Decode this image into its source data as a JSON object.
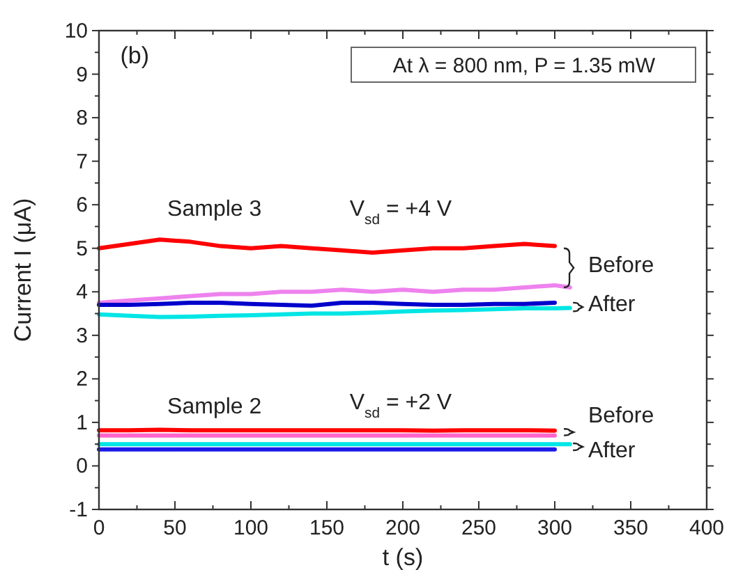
{
  "chart_data": {
    "type": "line",
    "xlabel": "t (s)",
    "ylabel": "Current I (μA)",
    "xlim": [
      0,
      400
    ],
    "ylim": [
      -1,
      10
    ],
    "xticks": [
      0,
      50,
      100,
      150,
      200,
      250,
      300,
      350,
      400
    ],
    "yticks": [
      -1,
      0,
      1,
      2,
      3,
      4,
      5,
      6,
      7,
      8,
      9,
      10
    ],
    "grid": false,
    "marker": "none",
    "line_style": "solid",
    "x": [
      0,
      20,
      40,
      60,
      80,
      100,
      120,
      140,
      160,
      180,
      200,
      220,
      240,
      260,
      280,
      300
    ],
    "series": [
      {
        "color": "#ff0000",
        "values": [
          5.0,
          5.1,
          5.2,
          5.15,
          5.05,
          5.0,
          5.05,
          5.0,
          4.95,
          4.9,
          4.95,
          5.0,
          5.0,
          5.05,
          5.1,
          5.05
        ]
      },
      {
        "color": "#ee82ee",
        "x": [
          0,
          20,
          40,
          60,
          80,
          100,
          120,
          140,
          160,
          180,
          200,
          220,
          240,
          260,
          280,
          300,
          310
        ],
        "values": [
          3.75,
          3.8,
          3.85,
          3.9,
          3.95,
          3.95,
          4.0,
          4.0,
          4.05,
          4.0,
          4.05,
          4.0,
          4.05,
          4.05,
          4.1,
          4.15,
          4.1
        ]
      },
      {
        "color": "#0000cc",
        "values": [
          3.7,
          3.7,
          3.72,
          3.75,
          3.75,
          3.72,
          3.7,
          3.68,
          3.75,
          3.75,
          3.72,
          3.7,
          3.7,
          3.72,
          3.72,
          3.75
        ]
      },
      {
        "color": "#00e5e5",
        "x": [
          0,
          20,
          40,
          60,
          80,
          100,
          120,
          140,
          160,
          180,
          200,
          220,
          240,
          260,
          280,
          300,
          310
        ],
        "values": [
          3.48,
          3.45,
          3.42,
          3.43,
          3.45,
          3.46,
          3.48,
          3.5,
          3.5,
          3.52,
          3.55,
          3.57,
          3.58,
          3.6,
          3.62,
          3.62,
          3.63
        ]
      },
      {
        "color": "#ff0000",
        "values": [
          0.82,
          0.82,
          0.83,
          0.82,
          0.82,
          0.82,
          0.82,
          0.82,
          0.82,
          0.82,
          0.82,
          0.81,
          0.82,
          0.82,
          0.82,
          0.81
        ]
      },
      {
        "color": "#ff66cc",
        "values": [
          0.7,
          0.7,
          0.7,
          0.7,
          0.7,
          0.7,
          0.7,
          0.7,
          0.7,
          0.7,
          0.7,
          0.7,
          0.7,
          0.7,
          0.7,
          0.7
        ]
      },
      {
        "color": "#00e5e5",
        "x": [
          0,
          20,
          40,
          60,
          80,
          100,
          120,
          140,
          160,
          180,
          200,
          220,
          240,
          260,
          280,
          300,
          310
        ],
        "values": [
          0.5,
          0.5,
          0.5,
          0.5,
          0.5,
          0.5,
          0.5,
          0.5,
          0.5,
          0.5,
          0.5,
          0.5,
          0.5,
          0.5,
          0.5,
          0.5,
          0.5
        ]
      },
      {
        "color": "#1a1ae6",
        "values": [
          0.38,
          0.38,
          0.38,
          0.38,
          0.38,
          0.38,
          0.38,
          0.38,
          0.38,
          0.38,
          0.38,
          0.38,
          0.38,
          0.38,
          0.38,
          0.38
        ]
      }
    ],
    "annotations": [
      "(b)",
      "At λ = 800 nm, P = 1.35 mW",
      "Sample 3",
      "V$_{sd}$ = +4 V",
      "Before",
      "After",
      "Sample 2",
      "V$_{sd}$ = +2 V",
      "Before",
      "After"
    ]
  }
}
